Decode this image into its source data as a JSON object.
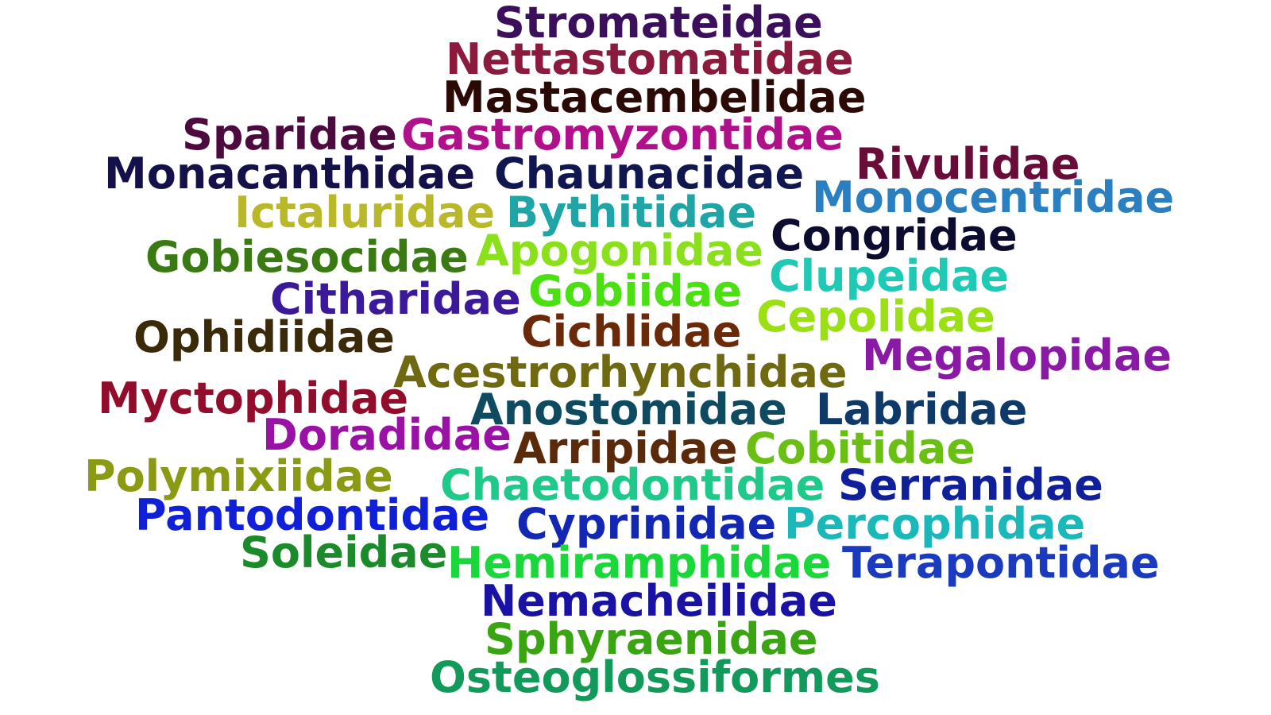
{
  "words": [
    {
      "text": "Stromateidae",
      "color": "#3b0f5c"
    },
    {
      "text": "Nettastomatidae",
      "color": "#8c1a3c"
    },
    {
      "text": "Mastacembelidae",
      "color": "#2b0a05"
    },
    {
      "text": "Sparidae",
      "color": "#4d0a3f"
    },
    {
      "text": "Gastromyzontidae",
      "color": "#b0108a"
    },
    {
      "text": "Rivulidae",
      "color": "#6a0c38"
    },
    {
      "text": "Monacanthidae",
      "color": "#14104a"
    },
    {
      "text": "Chaunacidae",
      "color": "#0f1650"
    },
    {
      "text": "Monocentridae",
      "color": "#2a7fc0"
    },
    {
      "text": "Ictaluridae",
      "color": "#b8b82a"
    },
    {
      "text": "Bythitidae",
      "color": "#1fa5a5"
    },
    {
      "text": "Congridae",
      "color": "#0c0c30"
    },
    {
      "text": "Gobiesocidae",
      "color": "#3a7a12"
    },
    {
      "text": "Apogonidae",
      "color": "#8ae01a"
    },
    {
      "text": "Clupeidae",
      "color": "#1ec9b5"
    },
    {
      "text": "Citharidae",
      "color": "#3a1a9a"
    },
    {
      "text": "Gobiidae",
      "color": "#4ae012"
    },
    {
      "text": "Cepolidae",
      "color": "#9ae012"
    },
    {
      "text": "Ophidiidae",
      "color": "#3a2a0a"
    },
    {
      "text": "Cichlidae",
      "color": "#6a2a0a"
    },
    {
      "text": "Megalopidae",
      "color": "#8a1aa5"
    },
    {
      "text": "Acestrorhynchidae",
      "color": "#6f6a12"
    },
    {
      "text": "Myctophidae",
      "color": "#920c2c"
    },
    {
      "text": "Anostomidae",
      "color": "#0e4a60"
    },
    {
      "text": "Labridae",
      "color": "#0e3a6a"
    },
    {
      "text": "Doradidae",
      "color": "#9a12a5"
    },
    {
      "text": "Arripidae",
      "color": "#5a2a0a"
    },
    {
      "text": "Cobitidae",
      "color": "#6ac012"
    },
    {
      "text": "Polymixiidae",
      "color": "#8a9a12"
    },
    {
      "text": "Chaetodontidae",
      "color": "#1ec98a"
    },
    {
      "text": "Serranidae",
      "color": "#10209a"
    },
    {
      "text": "Pantodontidae",
      "color": "#1020d8"
    },
    {
      "text": "Cyprinidae",
      "color": "#1228b5"
    },
    {
      "text": "Percophidae",
      "color": "#1ab8b8"
    },
    {
      "text": "Soleidae",
      "color": "#1a8a2a"
    },
    {
      "text": "Hemiramphidae",
      "color": "#1ad83a"
    },
    {
      "text": "Terapontidae",
      "color": "#1a3ac0"
    },
    {
      "text": "Nemacheilidae",
      "color": "#1a12a5"
    },
    {
      "text": "Sphyraenidae",
      "color": "#3aa512"
    },
    {
      "text": "Osteoglossiformes",
      "color": "#129a5a"
    }
  ]
}
